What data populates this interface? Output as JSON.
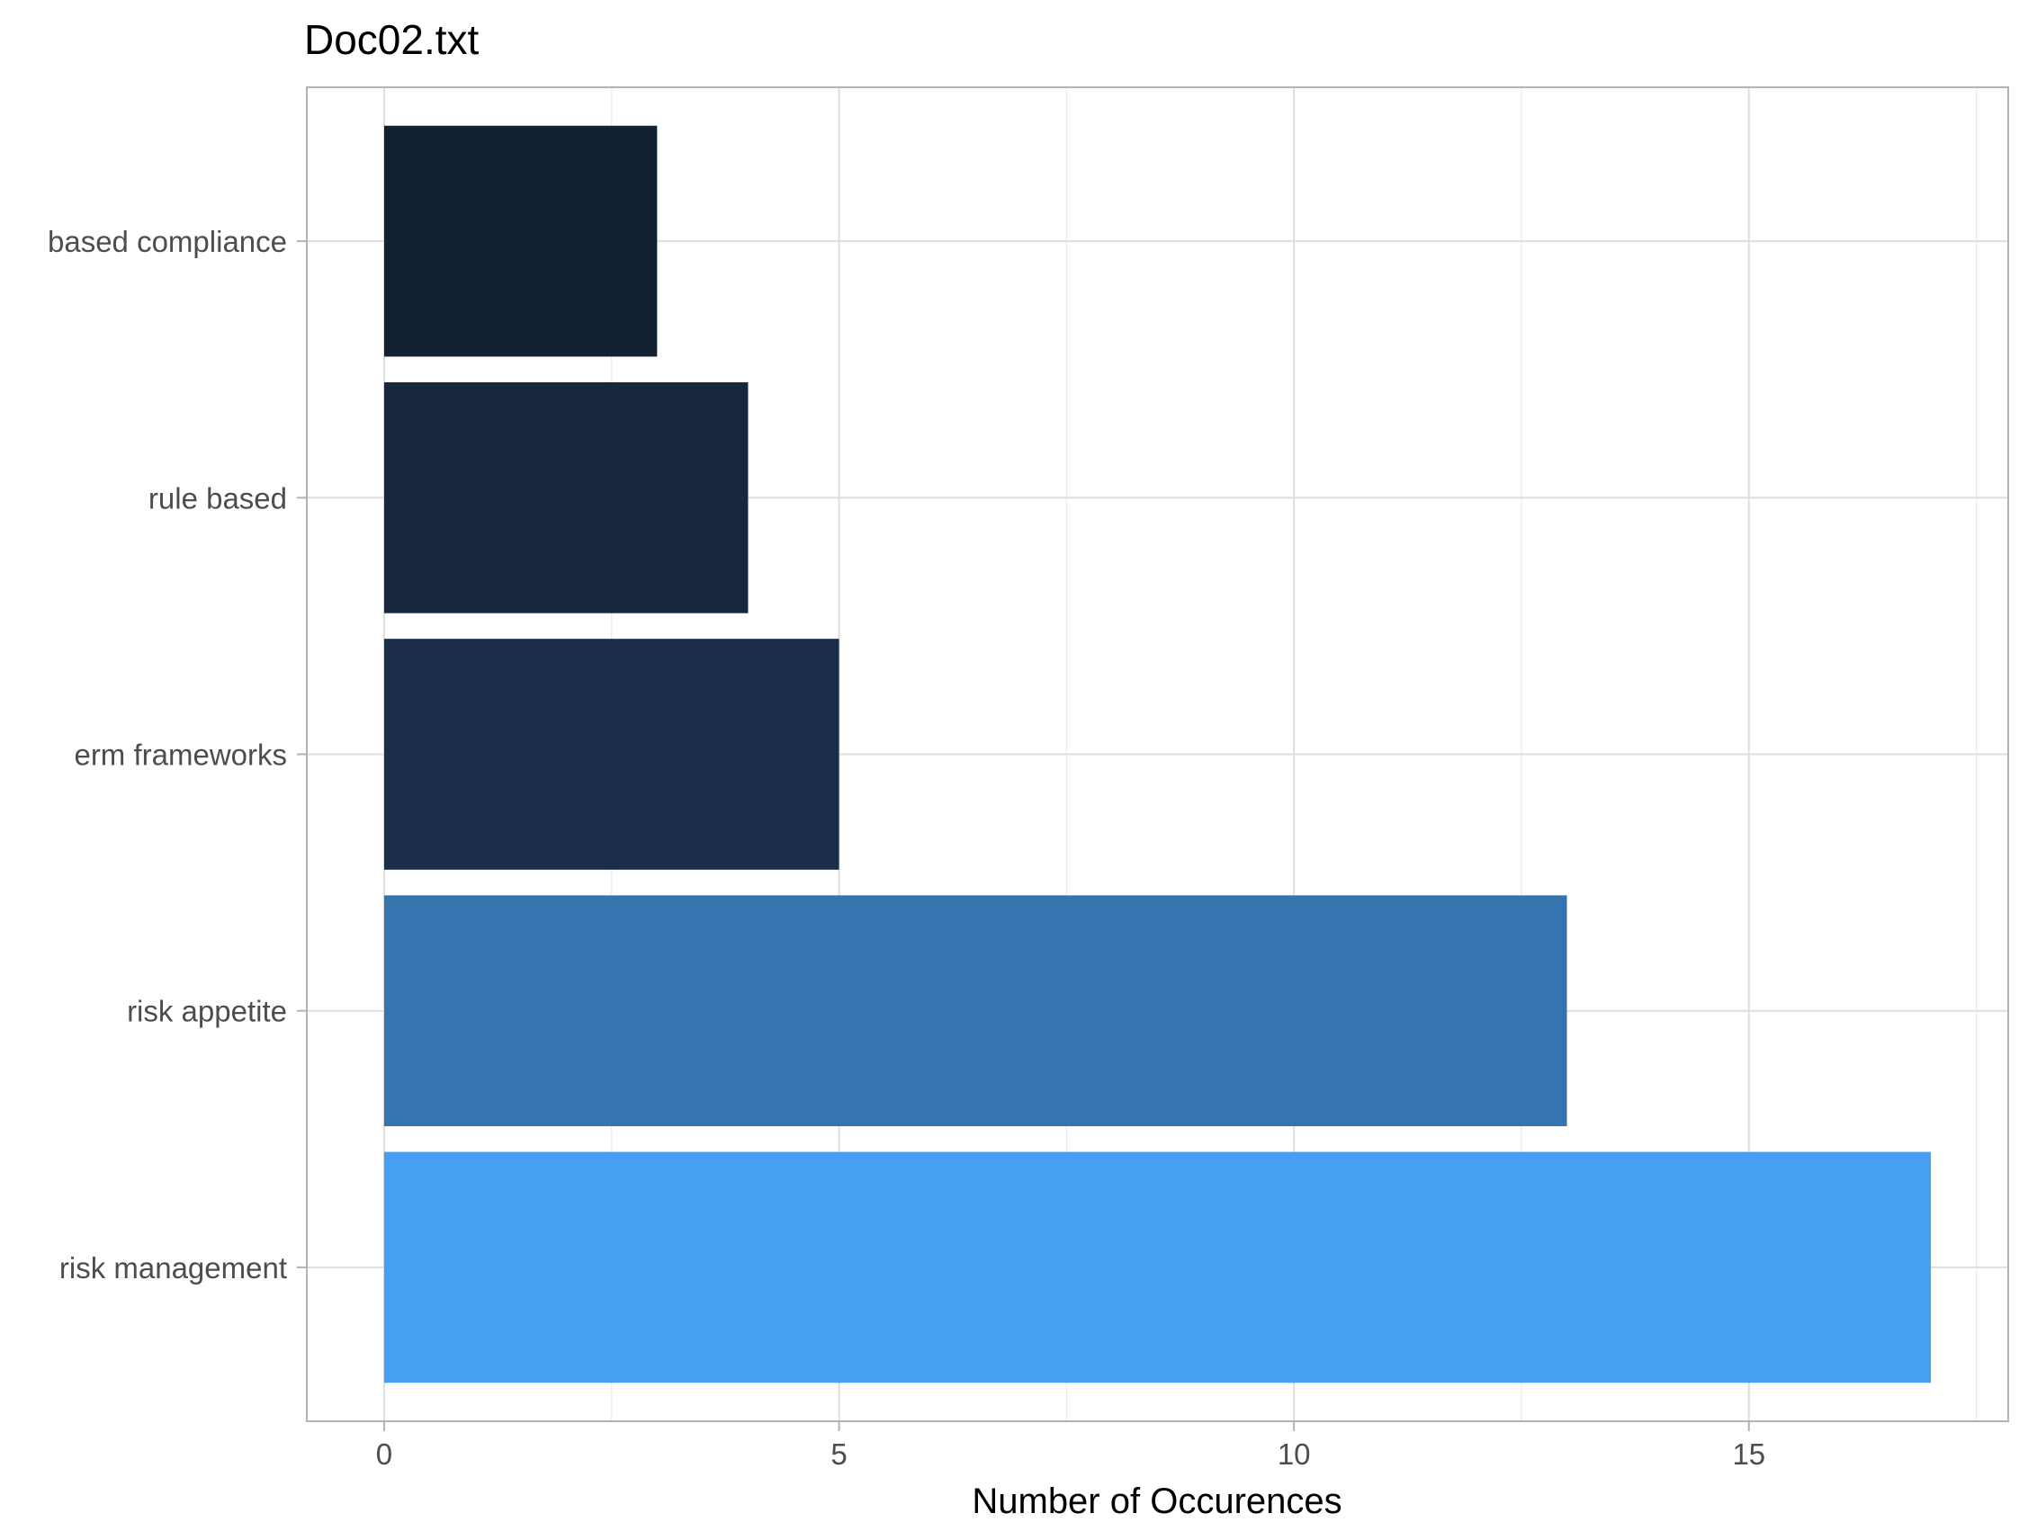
{
  "chart_data": {
    "type": "bar",
    "orientation": "horizontal",
    "title": "Doc02.txt",
    "xlabel": "Number of Occurences",
    "ylabel": "",
    "categories": [
      "based compliance",
      "rule based",
      "erm frameworks",
      "risk appetite",
      "risk management"
    ],
    "values": [
      3,
      4,
      5,
      13,
      17
    ],
    "colors": [
      "#132233",
      "#17273e",
      "#1a2e4a",
      "#3674b0",
      "#479ff4"
    ],
    "xlim": [
      -0.85,
      17.85
    ],
    "xticks": [
      0,
      5,
      10,
      15
    ],
    "xtick_labels": [
      "0",
      "5",
      "10",
      "15"
    ],
    "grid": true,
    "legend": false
  }
}
